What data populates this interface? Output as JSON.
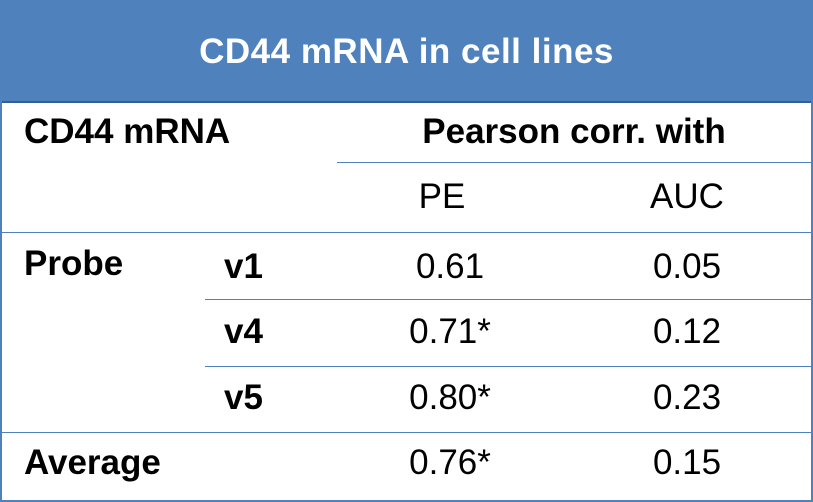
{
  "title": "CD44 mRNA in cell lines",
  "header": {
    "row_label": "CD44 mRNA",
    "group_label": "Pearson corr. with",
    "col_pe": "PE",
    "col_auc": "AUC"
  },
  "rows": [
    {
      "group": "Probe",
      "probe": "v1",
      "pe": "0.61",
      "auc": "0.05"
    },
    {
      "group": "",
      "probe": "v4",
      "pe": "0.71*",
      "auc": "0.12"
    },
    {
      "group": "",
      "probe": "v5",
      "pe": "0.80*",
      "auc": "0.23"
    }
  ],
  "average": {
    "label": "Average",
    "pe": "0.76*",
    "auc": "0.15"
  },
  "colors": {
    "header_bg": "#4f81bd",
    "header_text": "#ffffff",
    "rule": "#4f81bd"
  }
}
